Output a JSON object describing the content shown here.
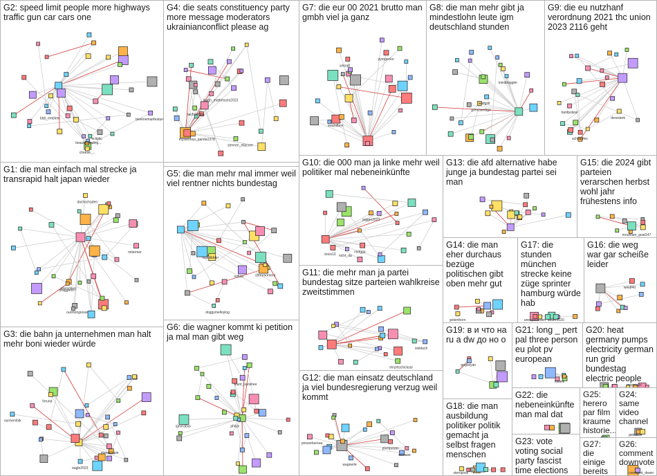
{
  "groups": [
    {
      "id": "G2",
      "label": "G2: speed limit people more highways traffic gun car cars one",
      "nodes": [
        "beautytrending...",
        "bbb_emblem",
        "cheese_...",
        "beeknemanfeatures",
        "ecliptic"
      ]
    },
    {
      "id": "G4",
      "label": "G4: die seats constituency party more message moderators ukrainianconflict please ag",
      "nodes": [
        "nachrichten",
        "mysterious_panda1378",
        "laugh_mattresses2023",
        "sternen_ellacore"
      ]
    },
    {
      "id": "G7",
      "label": "G7: die eur 00 2021 brutto man gmbh viel ja ganz",
      "nodes": [
        "unkopf",
        "swandbox",
        "pyrogecko"
      ]
    },
    {
      "id": "G8",
      "label": "G8: die man mehr gibt ja mindestlohn leute igm deutschland stunden",
      "nodes": [
        "mindboggler",
        "grenzwertige",
        "wolfgrill"
      ]
    },
    {
      "id": "G9",
      "label": "G9: die eu nutzhanf verordnung 2021 thc union 2023 2116 geht",
      "nodes": [
        "deresterk",
        "schnaufex",
        "hanfpolizei"
      ]
    },
    {
      "id": "G1",
      "label": "G1: die man einfach mal strecke ja transrapid halt japan wieder",
      "nodes": [
        "alkeseling",
        "draggen5",
        "dachschaden",
        "mtiermer",
        "ourmongoose"
      ]
    },
    {
      "id": "G5",
      "label": "G5: die man mehr mal immer weil viel rentner nichts bundestag",
      "nodes": [
        "realdibbler",
        "doggymelloylog",
        "sternmoment",
        "nobiro"
      ]
    },
    {
      "id": "G10",
      "label": "G10: die 000 man ja linke mehr weil politiker mal nebeneinkünfte",
      "nodes": [
        "jugger2023",
        "nsdgga",
        "kreis13",
        "nicht_da"
      ]
    },
    {
      "id": "G13",
      "label": "G13: die afd alternative habe junge ja bundestag partei sei man",
      "nodes": []
    },
    {
      "id": "G15",
      "label": "G15: die 2024 gibt parteien verarschen herbst wohl jahr frühestens info",
      "nodes": [
        "mountain_goat147"
      ]
    },
    {
      "id": "G14",
      "label": "G14: die man eher durchaus bezüge politischen gibt oben mehr gut",
      "nodes": [
        "golemhorn"
      ]
    },
    {
      "id": "G17",
      "label": "G17: die stunden münchen strecke keine züge sprinter hamburg würde hab",
      "nodes": [
        "unexpectedeh",
        "adder2020"
      ]
    },
    {
      "id": "G16",
      "label": "G16: die weg war gar scheiße leider",
      "nodes": [
        "windf40"
      ]
    },
    {
      "id": "G11",
      "label": "G11: die mehr man ja partei bundestag sitze parteien wahlkreise zweitstimmen",
      "nodes": [
        "sniktuch",
        "einzelschicksal"
      ]
    },
    {
      "id": "G3",
      "label": "G3: die bahn ja unternehmen man halt mehr boni wieder würde",
      "nodes": [
        "eagle2023",
        "pumpkinpie",
        "ourmenfolk",
        "freund"
      ]
    },
    {
      "id": "G6",
      "label": "G6: die wagner kommt ki petition ja mal man gibt weg",
      "nodes": [
        "ignorabus",
        "philyx",
        "blunt_banshee"
      ]
    },
    {
      "id": "G19",
      "label": "G19: в и что на ru a dw до но о",
      "nodes": [
        "pogosyan"
      ]
    },
    {
      "id": "G21",
      "label": "G21: long _ pert pal three person eu plot pv european",
      "nodes": [
        "fisdeik"
      ]
    },
    {
      "id": "G20",
      "label": "G20: heat germany pumps electricity german run grid bundestag electric people",
      "nodes": [
        "mxamatix"
      ]
    },
    {
      "id": "G12",
      "label": "G12: die man einsatz deutschland ja viel bundesregierung verzug weil kommt",
      "nodes": [
        "wagnerle",
        "elbhase",
        "pixelpotato",
        "pressebureau"
      ]
    },
    {
      "id": "G18",
      "label": "G18: die man ausbildung politiker politik gemacht ja selbst fragen menschen",
      "nodes": [
        "sternpose"
      ]
    },
    {
      "id": "G22",
      "label": "G22: die nebeneinkünfte man mal dat",
      "nodes": []
    },
    {
      "id": "G25",
      "label": "G25: herero par film kraume historie...",
      "nodes": []
    },
    {
      "id": "G24",
      "label": "G24: same video channel",
      "nodes": [
        "golem"
      ]
    },
    {
      "id": "G23",
      "label": "G23: vote voting social party fascist time elections still...",
      "nodes": []
    },
    {
      "id": "G27",
      "label": "G27: die einige bereits",
      "nodes": []
    },
    {
      "id": "G26",
      "label": "G26: comment downvote",
      "nodes": [
        "comment_dwwn"
      ]
    }
  ],
  "colors": {
    "border": "#b4b4b4",
    "edge": "#cfcfcf",
    "highlight_edge": "#d23a3a",
    "node_border": "#222222"
  }
}
